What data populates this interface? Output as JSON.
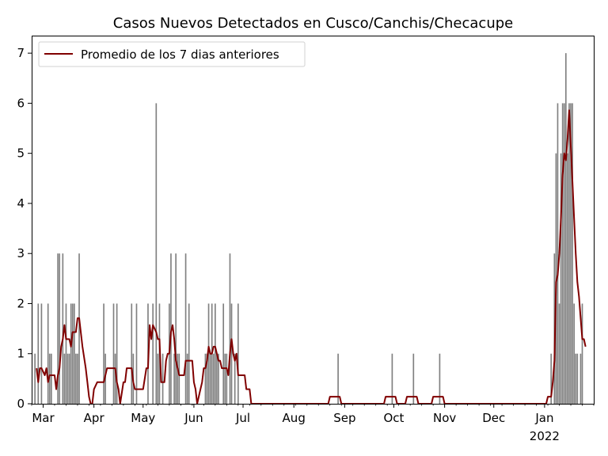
{
  "chart_data": {
    "type": "bar",
    "title": "Casos Nuevos Detectados en Cusco/Canchis/Checacupe",
    "xlabel": "",
    "ylabel": "",
    "x_range": [
      "2021-02-22",
      "2022-01-31"
    ],
    "ylim": [
      0,
      7.35
    ],
    "y_ticks": [
      0,
      1,
      2,
      3,
      4,
      5,
      6,
      7
    ],
    "x_ticks": [
      {
        "date": "2021-03-01",
        "label": "Mar"
      },
      {
        "date": "2021-04-01",
        "label": "Apr"
      },
      {
        "date": "2021-05-01",
        "label": "May"
      },
      {
        "date": "2021-06-01",
        "label": "Jun"
      },
      {
        "date": "2021-07-01",
        "label": "Jul"
      },
      {
        "date": "2021-08-01",
        "label": "Aug"
      },
      {
        "date": "2021-09-01",
        "label": "Sep"
      },
      {
        "date": "2021-10-01",
        "label": "Oct"
      },
      {
        "date": "2021-11-01",
        "label": "Nov"
      },
      {
        "date": "2021-12-01",
        "label": "Dec"
      },
      {
        "date": "2022-01-01",
        "label": "Jan",
        "sublabel": "2022"
      }
    ],
    "grid": false,
    "legend": {
      "placement": "top-left"
    },
    "series": [
      {
        "kind": "bar",
        "color": "#808080",
        "points": [
          [
            "2021-02-24",
            1
          ],
          [
            "2021-02-26",
            2
          ],
          [
            "2021-02-28",
            2
          ],
          [
            "2021-03-04",
            2
          ],
          [
            "2021-03-05",
            1
          ],
          [
            "2021-03-06",
            1
          ],
          [
            "2021-03-10",
            3
          ],
          [
            "2021-03-11",
            3
          ],
          [
            "2021-03-13",
            3
          ],
          [
            "2021-03-14",
            1
          ],
          [
            "2021-03-15",
            2
          ],
          [
            "2021-03-16",
            1
          ],
          [
            "2021-03-17",
            1
          ],
          [
            "2021-03-18",
            2
          ],
          [
            "2021-03-19",
            2
          ],
          [
            "2021-03-20",
            2
          ],
          [
            "2021-03-21",
            1
          ],
          [
            "2021-03-22",
            1
          ],
          [
            "2021-03-23",
            3
          ],
          [
            "2021-04-07",
            2
          ],
          [
            "2021-04-08",
            1
          ],
          [
            "2021-04-13",
            2
          ],
          [
            "2021-04-14",
            1
          ],
          [
            "2021-04-15",
            2
          ],
          [
            "2021-04-24",
            2
          ],
          [
            "2021-04-25",
            1
          ],
          [
            "2021-04-27",
            2
          ],
          [
            "2021-05-04",
            2
          ],
          [
            "2021-05-07",
            2
          ],
          [
            "2021-05-09",
            6
          ],
          [
            "2021-05-10",
            1
          ],
          [
            "2021-05-11",
            2
          ],
          [
            "2021-05-13",
            1
          ],
          [
            "2021-05-17",
            2
          ],
          [
            "2021-05-18",
            3
          ],
          [
            "2021-05-20",
            1
          ],
          [
            "2021-05-21",
            3
          ],
          [
            "2021-05-22",
            1
          ],
          [
            "2021-05-23",
            1
          ],
          [
            "2021-05-27",
            3
          ],
          [
            "2021-05-28",
            1
          ],
          [
            "2021-05-29",
            2
          ],
          [
            "2021-06-08",
            1
          ],
          [
            "2021-06-09",
            1
          ],
          [
            "2021-06-10",
            2
          ],
          [
            "2021-06-11",
            1
          ],
          [
            "2021-06-12",
            2
          ],
          [
            "2021-06-13",
            1
          ],
          [
            "2021-06-14",
            2
          ],
          [
            "2021-06-15",
            1
          ],
          [
            "2021-06-16",
            1
          ],
          [
            "2021-06-19",
            2
          ],
          [
            "2021-06-20",
            1
          ],
          [
            "2021-06-21",
            1
          ],
          [
            "2021-06-23",
            3
          ],
          [
            "2021-06-24",
            2
          ],
          [
            "2021-06-26",
            1
          ],
          [
            "2021-06-28",
            2
          ],
          [
            "2021-08-28",
            1
          ],
          [
            "2021-09-30",
            1
          ],
          [
            "2021-10-13",
            1
          ],
          [
            "2021-10-29",
            1
          ],
          [
            "2022-01-05",
            1
          ],
          [
            "2022-01-07",
            3
          ],
          [
            "2022-01-08",
            5
          ],
          [
            "2022-01-09",
            6
          ],
          [
            "2022-01-10",
            2
          ],
          [
            "2022-01-11",
            5
          ],
          [
            "2022-01-12",
            6
          ],
          [
            "2022-01-13",
            6
          ],
          [
            "2022-01-14",
            7
          ],
          [
            "2022-01-15",
            5
          ],
          [
            "2022-01-16",
            6
          ],
          [
            "2022-01-17",
            6
          ],
          [
            "2022-01-18",
            6
          ],
          [
            "2022-01-19",
            2
          ],
          [
            "2022-01-20",
            1
          ],
          [
            "2022-01-21",
            1
          ],
          [
            "2022-01-23",
            1
          ],
          [
            "2022-01-24",
            2
          ]
        ]
      },
      {
        "kind": "line",
        "name": "Promedio de los 7 dias anteriores",
        "color": "#800000",
        "points": [
          [
            "2021-02-25",
            0.71
          ],
          [
            "2021-02-26",
            0.43
          ],
          [
            "2021-02-27",
            0.71
          ],
          [
            "2021-02-28",
            0.71
          ],
          [
            "2021-03-02",
            0.57
          ],
          [
            "2021-03-03",
            0.71
          ],
          [
            "2021-03-04",
            0.43
          ],
          [
            "2021-03-05",
            0.57
          ],
          [
            "2021-03-08",
            0.57
          ],
          [
            "2021-03-09",
            0.29
          ],
          [
            "2021-03-10",
            0.57
          ],
          [
            "2021-03-11",
            0.71
          ],
          [
            "2021-03-12",
            1.14
          ],
          [
            "2021-03-13",
            1.29
          ],
          [
            "2021-03-14",
            1.57
          ],
          [
            "2021-03-15",
            1.29
          ],
          [
            "2021-03-17",
            1.29
          ],
          [
            "2021-03-18",
            1.14
          ],
          [
            "2021-03-19",
            1.43
          ],
          [
            "2021-03-21",
            1.43
          ],
          [
            "2021-03-22",
            1.71
          ],
          [
            "2021-03-23",
            1.71
          ],
          [
            "2021-03-25",
            1.14
          ],
          [
            "2021-03-27",
            0.71
          ],
          [
            "2021-03-28",
            0.43
          ],
          [
            "2021-03-29",
            0.14
          ],
          [
            "2021-03-30",
            0.0
          ],
          [
            "2021-03-31",
            0.0
          ],
          [
            "2021-04-01",
            0.29
          ],
          [
            "2021-04-03",
            0.43
          ],
          [
            "2021-04-07",
            0.43
          ],
          [
            "2021-04-09",
            0.71
          ],
          [
            "2021-04-14",
            0.71
          ],
          [
            "2021-04-15",
            0.43
          ],
          [
            "2021-04-16",
            0.29
          ],
          [
            "2021-04-17",
            0.0
          ],
          [
            "2021-04-19",
            0.43
          ],
          [
            "2021-04-20",
            0.43
          ],
          [
            "2021-04-21",
            0.71
          ],
          [
            "2021-04-24",
            0.71
          ],
          [
            "2021-04-25",
            0.43
          ],
          [
            "2021-04-26",
            0.29
          ],
          [
            "2021-05-01",
            0.29
          ],
          [
            "2021-05-03",
            0.71
          ],
          [
            "2021-05-04",
            0.71
          ],
          [
            "2021-05-05",
            1.57
          ],
          [
            "2021-05-06",
            1.29
          ],
          [
            "2021-05-07",
            1.57
          ],
          [
            "2021-05-09",
            1.43
          ],
          [
            "2021-05-10",
            1.29
          ],
          [
            "2021-05-11",
            1.29
          ],
          [
            "2021-05-12",
            0.43
          ],
          [
            "2021-05-14",
            0.43
          ],
          [
            "2021-05-15",
            0.86
          ],
          [
            "2021-05-16",
            1.0
          ],
          [
            "2021-05-17",
            1.0
          ],
          [
            "2021-05-18",
            1.43
          ],
          [
            "2021-05-19",
            1.57
          ],
          [
            "2021-05-20",
            1.29
          ],
          [
            "2021-05-21",
            0.86
          ],
          [
            "2021-05-23",
            0.57
          ],
          [
            "2021-05-26",
            0.57
          ],
          [
            "2021-05-27",
            0.86
          ],
          [
            "2021-05-31",
            0.86
          ],
          [
            "2021-06-01",
            0.43
          ],
          [
            "2021-06-02",
            0.29
          ],
          [
            "2021-06-03",
            0.0
          ],
          [
            "2021-06-05",
            0.29
          ],
          [
            "2021-06-06",
            0.43
          ],
          [
            "2021-06-07",
            0.71
          ],
          [
            "2021-06-08",
            0.71
          ],
          [
            "2021-06-09",
            0.86
          ],
          [
            "2021-06-10",
            1.14
          ],
          [
            "2021-06-11",
            1.0
          ],
          [
            "2021-06-12",
            1.0
          ],
          [
            "2021-06-13",
            1.14
          ],
          [
            "2021-06-14",
            1.14
          ],
          [
            "2021-06-15",
            1.0
          ],
          [
            "2021-06-16",
            0.86
          ],
          [
            "2021-06-17",
            0.86
          ],
          [
            "2021-06-18",
            0.71
          ],
          [
            "2021-06-21",
            0.71
          ],
          [
            "2021-06-22",
            0.57
          ],
          [
            "2021-06-23",
            1.0
          ],
          [
            "2021-06-24",
            1.29
          ],
          [
            "2021-06-25",
            1.0
          ],
          [
            "2021-06-26",
            0.86
          ],
          [
            "2021-06-27",
            1.0
          ],
          [
            "2021-06-28",
            0.57
          ],
          [
            "2021-07-02",
            0.57
          ],
          [
            "2021-07-03",
            0.29
          ],
          [
            "2021-07-05",
            0.29
          ],
          [
            "2021-07-06",
            0.0
          ],
          [
            "2021-08-22",
            0.0
          ],
          [
            "2021-08-23",
            0.14
          ],
          [
            "2021-08-29",
            0.14
          ],
          [
            "2021-08-30",
            0.0
          ],
          [
            "2021-09-25",
            0.0
          ],
          [
            "2021-09-26",
            0.14
          ],
          [
            "2021-10-02",
            0.14
          ],
          [
            "2021-10-03",
            0.0
          ],
          [
            "2021-10-08",
            0.0
          ],
          [
            "2021-10-09",
            0.14
          ],
          [
            "2021-10-15",
            0.14
          ],
          [
            "2021-10-16",
            0.0
          ],
          [
            "2021-10-24",
            0.0
          ],
          [
            "2021-10-25",
            0.14
          ],
          [
            "2021-10-31",
            0.14
          ],
          [
            "2021-11-01",
            0.0
          ],
          [
            "2022-01-02",
            0.0
          ],
          [
            "2022-01-03",
            0.14
          ],
          [
            "2022-01-05",
            0.14
          ],
          [
            "2022-01-06",
            0.43
          ],
          [
            "2022-01-07",
            0.86
          ],
          [
            "2022-01-08",
            2.43
          ],
          [
            "2022-01-09",
            2.57
          ],
          [
            "2022-01-10",
            3.0
          ],
          [
            "2022-01-11",
            3.71
          ],
          [
            "2022-01-12",
            4.57
          ],
          [
            "2022-01-13",
            5.0
          ],
          [
            "2022-01-14",
            4.86
          ],
          [
            "2022-01-15",
            5.29
          ],
          [
            "2022-01-16",
            5.86
          ],
          [
            "2022-01-17",
            5.14
          ],
          [
            "2022-01-18",
            4.43
          ],
          [
            "2022-01-19",
            3.71
          ],
          [
            "2022-01-20",
            3.0
          ],
          [
            "2022-01-21",
            2.43
          ],
          [
            "2022-01-22",
            2.14
          ],
          [
            "2022-01-23",
            1.71
          ],
          [
            "2022-01-24",
            1.29
          ],
          [
            "2022-01-25",
            1.29
          ],
          [
            "2022-01-26",
            1.14
          ]
        ]
      }
    ]
  }
}
